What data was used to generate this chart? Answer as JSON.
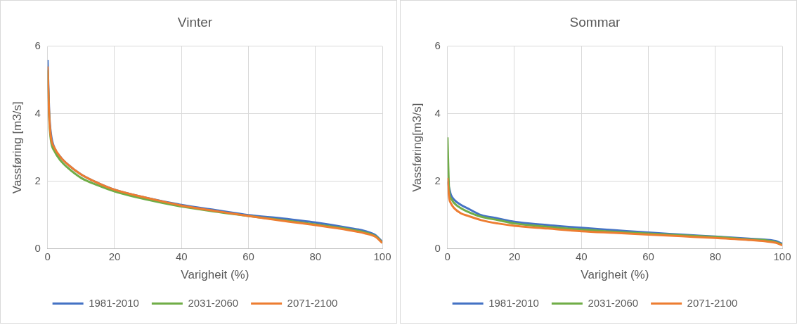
{
  "chart_data": [
    {
      "type": "line",
      "title": "Vinter",
      "xlabel": "Varigheit (%)",
      "ylabel": "Vassføring [m3/s]",
      "x": [
        0,
        0.5,
        1,
        2,
        4,
        6,
        10,
        15,
        20,
        30,
        40,
        50,
        60,
        70,
        80,
        90,
        95,
        98,
        100
      ],
      "xlim": [
        0,
        100
      ],
      "xticks": [
        0,
        20,
        40,
        60,
        80,
        100
      ],
      "ylim": [
        0,
        6
      ],
      "yticks": [
        0,
        2,
        4,
        6
      ],
      "grid": true,
      "legend": "bottom",
      "series": [
        {
          "name": "1981-2010",
          "color": "#4472c4",
          "values": [
            5.6,
            4.0,
            3.4,
            3.0,
            2.7,
            2.5,
            2.2,
            1.95,
            1.75,
            1.5,
            1.3,
            1.15,
            1.0,
            0.9,
            0.78,
            0.62,
            0.52,
            0.4,
            0.2
          ]
        },
        {
          "name": "2031-2060",
          "color": "#70ad47",
          "values": [
            5.3,
            3.8,
            3.2,
            2.9,
            2.6,
            2.4,
            2.1,
            1.88,
            1.7,
            1.45,
            1.25,
            1.1,
            0.97,
            0.85,
            0.72,
            0.58,
            0.48,
            0.37,
            0.18
          ]
        },
        {
          "name": "2071-2100",
          "color": "#ed7d31",
          "values": [
            5.4,
            3.9,
            3.3,
            3.0,
            2.7,
            2.5,
            2.2,
            1.95,
            1.75,
            1.5,
            1.28,
            1.12,
            0.97,
            0.83,
            0.7,
            0.55,
            0.45,
            0.35,
            0.17
          ]
        }
      ]
    },
    {
      "type": "line",
      "title": "Sommar",
      "xlabel": "Varigheit (%)",
      "ylabel": "Vassføring[m3/s]",
      "x": [
        0,
        0.5,
        1,
        2,
        4,
        6,
        10,
        15,
        20,
        30,
        40,
        50,
        60,
        70,
        80,
        90,
        95,
        98,
        100
      ],
      "xlim": [
        0,
        100
      ],
      "xticks": [
        0,
        20,
        40,
        60,
        80,
        100
      ],
      "ylim": [
        0,
        6
      ],
      "yticks": [
        0,
        2,
        4,
        6
      ],
      "grid": true,
      "legend": "bottom",
      "series": [
        {
          "name": "1981-2010",
          "color": "#4472c4",
          "values": [
            2.0,
            1.8,
            1.6,
            1.45,
            1.3,
            1.2,
            1.0,
            0.9,
            0.8,
            0.7,
            0.62,
            0.55,
            0.48,
            0.42,
            0.36,
            0.3,
            0.27,
            0.23,
            0.15
          ]
        },
        {
          "name": "2031-2060",
          "color": "#70ad47",
          "values": [
            3.3,
            1.7,
            1.5,
            1.35,
            1.2,
            1.1,
            0.95,
            0.85,
            0.75,
            0.65,
            0.57,
            0.5,
            0.45,
            0.4,
            0.35,
            0.28,
            0.25,
            0.2,
            0.12
          ]
        },
        {
          "name": "2071-2100",
          "color": "#ed7d31",
          "values": [
            2.1,
            1.5,
            1.35,
            1.2,
            1.05,
            0.98,
            0.85,
            0.75,
            0.68,
            0.6,
            0.52,
            0.47,
            0.42,
            0.37,
            0.32,
            0.26,
            0.22,
            0.18,
            0.1
          ]
        }
      ]
    }
  ]
}
